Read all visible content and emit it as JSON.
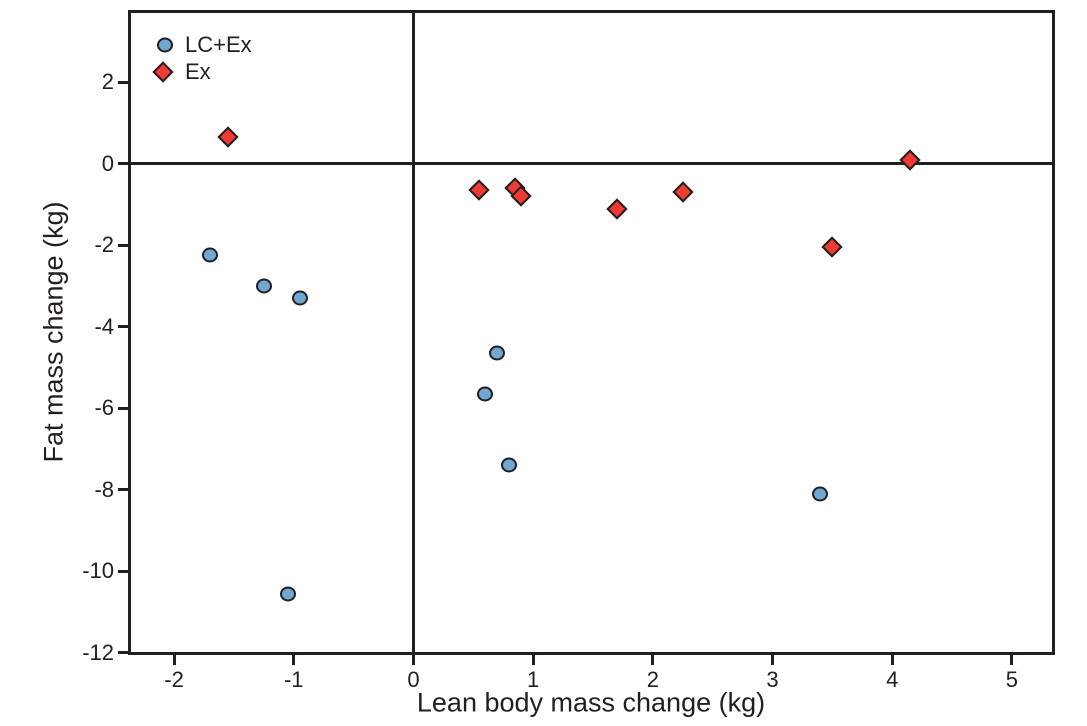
{
  "chart_data": {
    "type": "scatter",
    "title": "",
    "xlabel": "Lean body mass change (kg)",
    "ylabel": "Fat mass change (kg)",
    "xlim": [
      -2.385,
      5.36
    ],
    "ylim": [
      -12.05,
      3.77
    ],
    "x_ticks": [
      -2,
      -1,
      0,
      1,
      2,
      3,
      4,
      5
    ],
    "y_ticks": [
      2,
      0,
      -2,
      -4,
      -6,
      -8,
      -10,
      -12
    ],
    "grid": false,
    "reference_lines": {
      "vertical_at_x": 0,
      "horizontal_at_y": 0
    },
    "legend_position": "top-left-inside",
    "axis_color": "#231f20",
    "series": [
      {
        "name": "LC+Ex",
        "marker": "circle",
        "color": "#6fa8d2",
        "outline_color": "#231f20",
        "points": [
          [
            -1.7,
            -2.25
          ],
          [
            -1.25,
            -3.0
          ],
          [
            -0.95,
            -3.3
          ],
          [
            -1.05,
            -10.55
          ],
          [
            0.7,
            -4.65
          ],
          [
            0.6,
            -5.65
          ],
          [
            0.8,
            -7.4
          ],
          [
            3.4,
            -8.1
          ]
        ]
      },
      {
        "name": "Ex",
        "marker": "diamond",
        "color": "#ee3b33",
        "outline_color": "#231f20",
        "points": [
          [
            -1.55,
            0.65
          ],
          [
            0.55,
            -0.65
          ],
          [
            0.85,
            -0.6
          ],
          [
            0.9,
            -0.8
          ],
          [
            1.7,
            -1.1
          ],
          [
            2.25,
            -0.7
          ],
          [
            3.5,
            -2.05
          ],
          [
            4.15,
            0.1
          ]
        ]
      }
    ]
  }
}
